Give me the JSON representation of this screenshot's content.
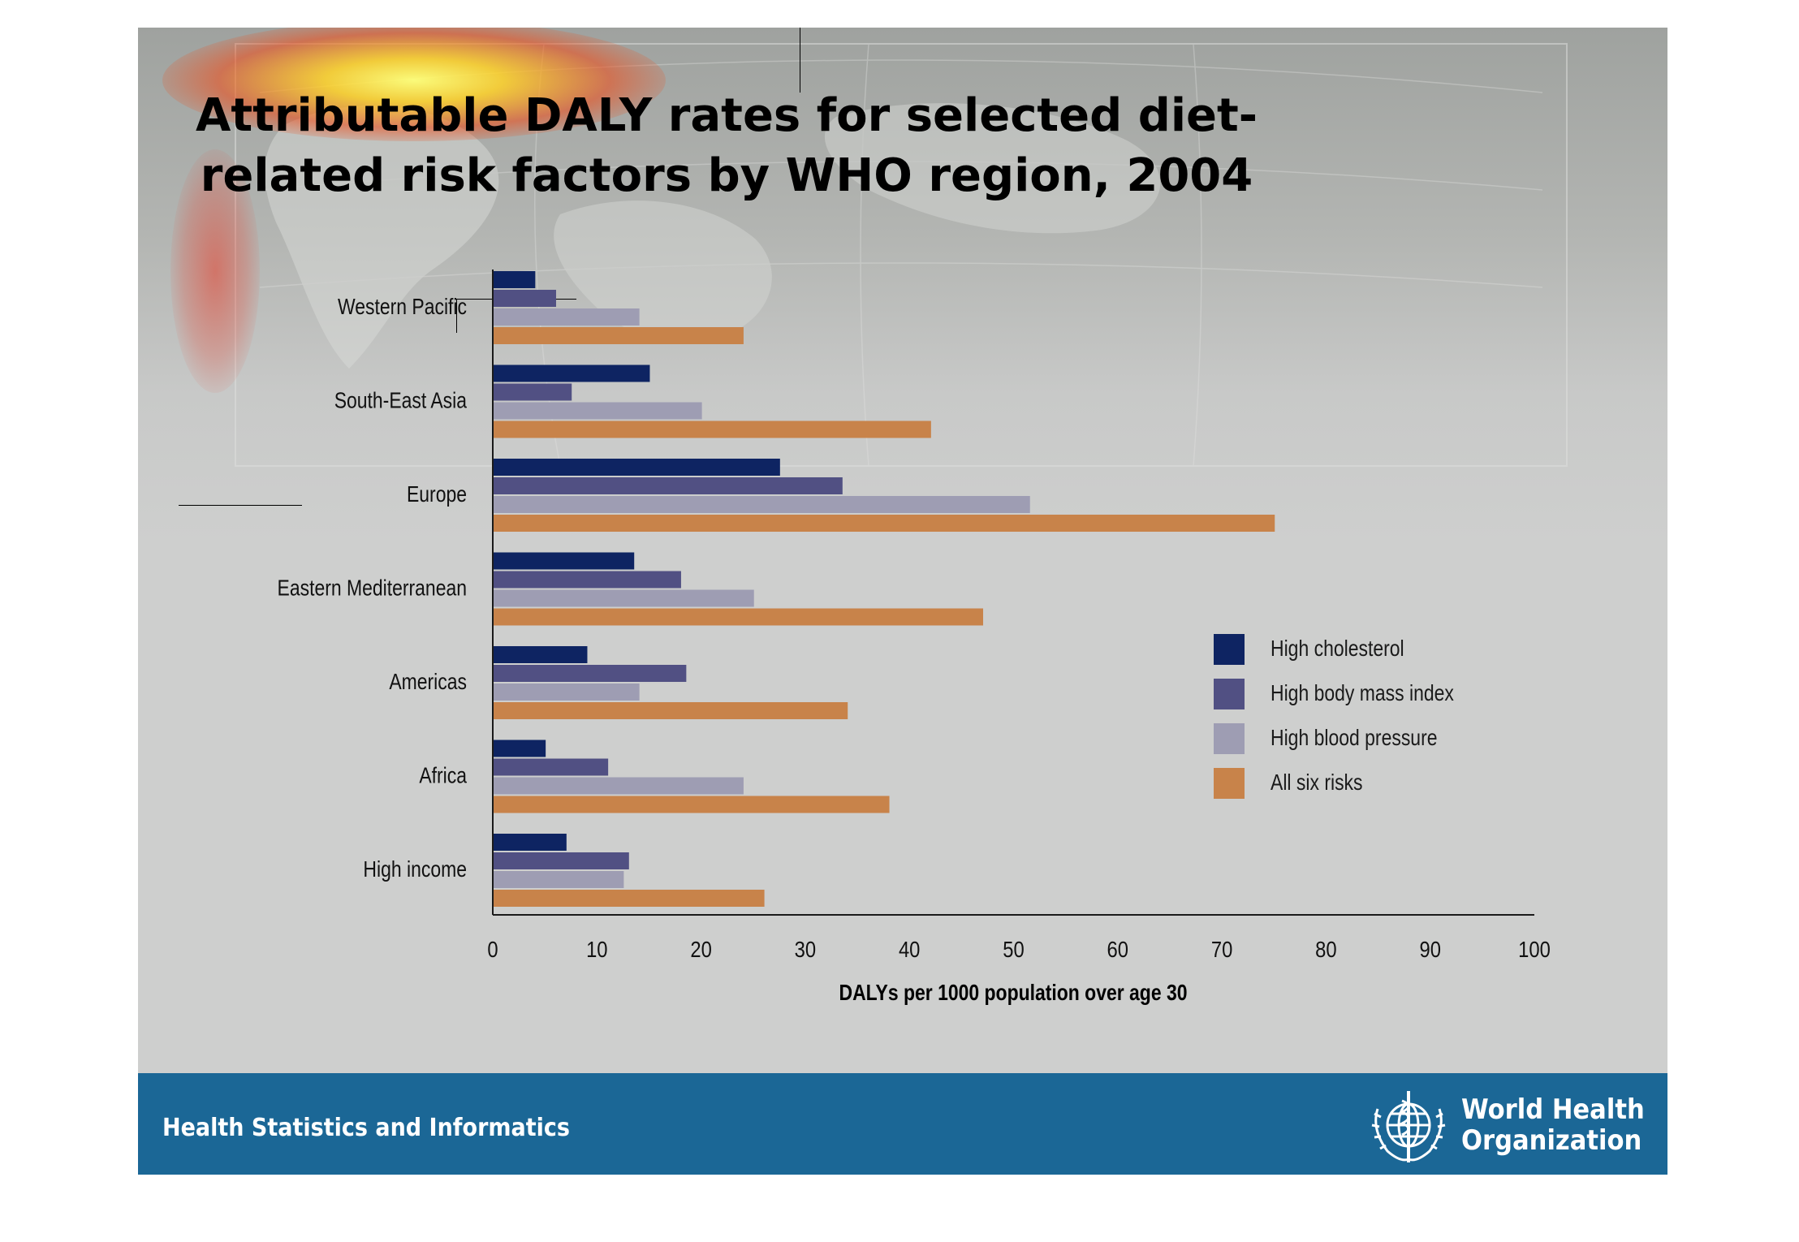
{
  "page_title": "Attributable DALY rates for selected diet-related risk factors by WHO region, 2004",
  "footer": {
    "left_text": "Health Statistics and Informatics",
    "org_name_line1": "World Health",
    "org_name_line2": "Organization",
    "logo_icon": "who-emblem-icon",
    "bar_color": "#1b6796"
  },
  "chart_data": {
    "type": "bar",
    "orientation": "horizontal",
    "title": "Attributable DALY rates for selected diet-related risk factors by WHO region, 2004",
    "xlabel": "DALYs per 1000 population over age 30",
    "ylabel": "",
    "xlim": [
      0,
      100
    ],
    "xticks": [
      0,
      10,
      20,
      30,
      40,
      50,
      60,
      70,
      80,
      90,
      100
    ],
    "grid": false,
    "legend_position": "right",
    "categories": [
      "Western Pacific",
      "South-East Asia",
      "Europe",
      "Eastern Mediterranean",
      "Americas",
      "Africa",
      "High income"
    ],
    "series": [
      {
        "name": "High cholesterol",
        "color": "#0e2462",
        "values": [
          4,
          15,
          27.5,
          13.5,
          9,
          5,
          7
        ]
      },
      {
        "name": "High body mass index",
        "color": "#515083",
        "values": [
          6,
          7.5,
          33.5,
          18,
          18.5,
          11,
          13
        ]
      },
      {
        "name": "High blood pressure",
        "color": "#9e9db3",
        "values": [
          14,
          20,
          51.5,
          25,
          14,
          24,
          12.5
        ]
      },
      {
        "name": "All six risks",
        "color": "#c8834a",
        "values": [
          24,
          42,
          75,
          47,
          34,
          38,
          26
        ]
      }
    ]
  }
}
